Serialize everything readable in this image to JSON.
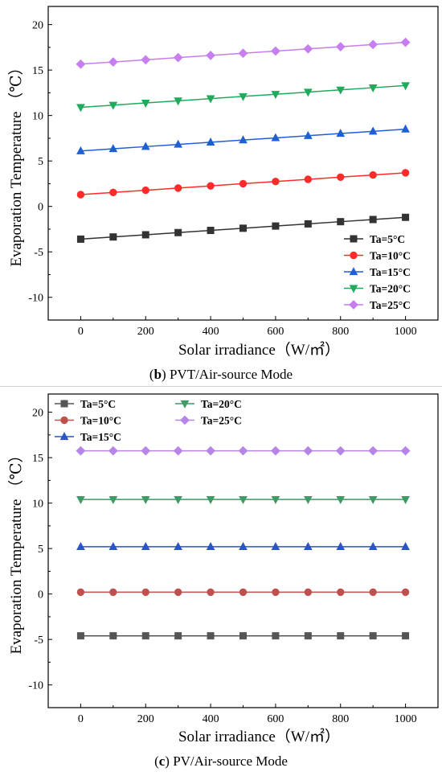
{
  "chart_data": [
    {
      "type": "line",
      "caption_letter": "b",
      "caption_text": " PVT/Air-source Mode",
      "xlabel": "Solar irradiance（W/㎡）",
      "ylabel": "Evaporation Temperature （℃）",
      "xlim": [
        -100,
        1100
      ],
      "ylim": [
        -12.5,
        22
      ],
      "x_ticks": [
        0,
        200,
        400,
        600,
        800,
        1000
      ],
      "y_ticks": [
        -10,
        -5,
        0,
        5,
        10,
        15,
        20
      ],
      "legend_position": "bottom-right",
      "x": [
        0,
        100,
        200,
        300,
        400,
        500,
        600,
        700,
        800,
        900,
        1000
      ],
      "series": [
        {
          "name": "Ta=5°C",
          "color": "#333333",
          "marker": "square",
          "values": [
            -3.6,
            -3.36,
            -3.12,
            -2.88,
            -2.64,
            -2.4,
            -2.16,
            -1.92,
            -1.68,
            -1.44,
            -1.2
          ]
        },
        {
          "name": "Ta=10°C",
          "color": "#ff2b2b",
          "marker": "circle",
          "values": [
            1.3,
            1.54,
            1.78,
            2.02,
            2.26,
            2.5,
            2.74,
            2.98,
            3.22,
            3.46,
            3.7
          ]
        },
        {
          "name": "Ta=15°C",
          "color": "#1f5fd6",
          "marker": "triangle-up",
          "values": [
            6.1,
            6.34,
            6.58,
            6.82,
            7.06,
            7.3,
            7.54,
            7.78,
            8.02,
            8.26,
            8.5
          ]
        },
        {
          "name": "Ta=20°C",
          "color": "#1faa5c",
          "marker": "triangle-down",
          "values": [
            10.9,
            11.14,
            11.38,
            11.62,
            11.86,
            12.1,
            12.34,
            12.58,
            12.82,
            13.06,
            13.3
          ]
        },
        {
          "name": "Ta=25°C",
          "color": "#c77ef0",
          "marker": "diamond",
          "values": [
            15.65,
            15.89,
            16.13,
            16.37,
            16.61,
            16.85,
            17.09,
            17.33,
            17.57,
            17.81,
            18.05
          ]
        }
      ]
    },
    {
      "type": "line",
      "caption_letter": "c",
      "caption_text": " PV/Air-source Mode",
      "xlabel": "Solar irradiance（W/㎡）",
      "ylabel": "Evaporation Temperature （℃）",
      "xlim": [
        -100,
        1100
      ],
      "ylim": [
        -12.5,
        22
      ],
      "x_ticks": [
        0,
        200,
        400,
        600,
        800,
        1000
      ],
      "y_ticks": [
        -10,
        -5,
        0,
        5,
        10,
        15,
        20
      ],
      "legend_position": "top-left",
      "x": [
        0,
        100,
        200,
        300,
        400,
        500,
        600,
        700,
        800,
        900,
        1000
      ],
      "series": [
        {
          "name": "Ta=5°C",
          "color": "#555555",
          "marker": "square",
          "values": [
            -4.6,
            -4.6,
            -4.6,
            -4.6,
            -4.6,
            -4.6,
            -4.6,
            -4.6,
            -4.6,
            -4.6,
            -4.6
          ]
        },
        {
          "name": "Ta=10°C",
          "color": "#c0504d",
          "marker": "circle",
          "values": [
            0.2,
            0.2,
            0.2,
            0.2,
            0.2,
            0.2,
            0.2,
            0.2,
            0.2,
            0.2,
            0.2
          ]
        },
        {
          "name": "Ta=15°C",
          "color": "#2a55c8",
          "marker": "triangle-up",
          "values": [
            5.2,
            5.2,
            5.2,
            5.2,
            5.2,
            5.2,
            5.2,
            5.2,
            5.2,
            5.2,
            5.2
          ]
        },
        {
          "name": "Ta=20°C",
          "color": "#3f9a66",
          "marker": "triangle-down",
          "values": [
            10.4,
            10.4,
            10.4,
            10.4,
            10.4,
            10.4,
            10.4,
            10.4,
            10.4,
            10.4,
            10.4
          ]
        },
        {
          "name": "Ta=25°C",
          "color": "#b784e8",
          "marker": "diamond",
          "values": [
            15.75,
            15.75,
            15.75,
            15.75,
            15.75,
            15.75,
            15.75,
            15.75,
            15.75,
            15.75,
            15.75
          ]
        }
      ]
    }
  ]
}
